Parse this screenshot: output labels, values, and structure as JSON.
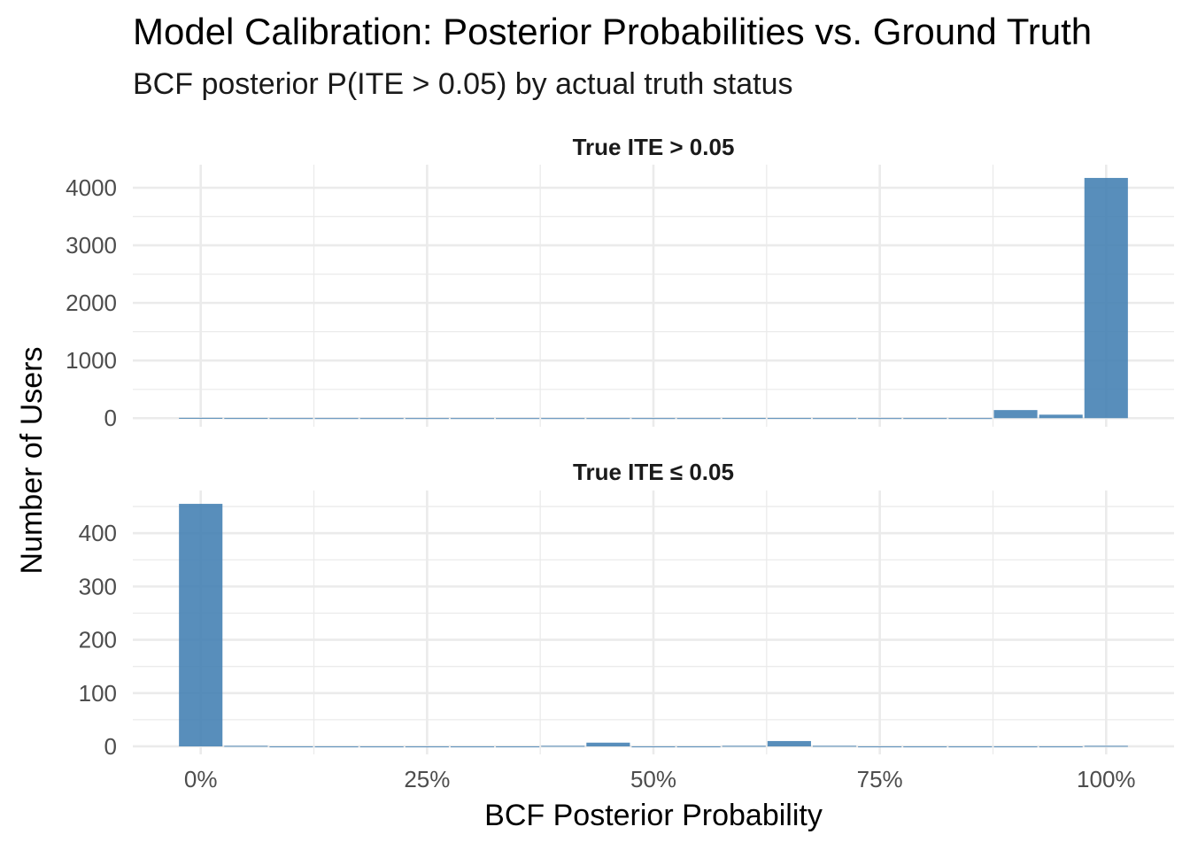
{
  "title": "Model Calibration: Posterior Probabilities vs. Ground Truth",
  "subtitle": "BCF posterior P(ITE > 0.05) by actual truth status",
  "colors": {
    "bar": "#4682b4",
    "grid": "#ebebeb"
  },
  "chart_data": {
    "type": "bar",
    "xlabel": "BCF Posterior Probability",
    "ylabel": "Number of Users",
    "x_ticks": [
      "0%",
      "25%",
      "50%",
      "75%",
      "100%"
    ],
    "xlim": [
      -0.075,
      1.075
    ],
    "bin_width": 0.05,
    "bin_centers": [
      0,
      0.05,
      0.1,
      0.15,
      0.2,
      0.25,
      0.3,
      0.35,
      0.4,
      0.45,
      0.5,
      0.55,
      0.6,
      0.65,
      0.7,
      0.75,
      0.8,
      0.85,
      0.9,
      0.95,
      1.0
    ],
    "grid": true,
    "panels": [
      {
        "label": "True ITE > 0.05",
        "ylim": [
          -150,
          4400
        ],
        "y_ticks": [
          0,
          1000,
          2000,
          3000,
          4000
        ],
        "values": [
          5,
          2,
          1,
          1,
          1,
          1,
          1,
          1,
          1,
          1,
          1,
          1,
          2,
          2,
          1,
          1,
          1,
          1,
          140,
          60,
          4170
        ]
      },
      {
        "label": "True ITE ≤ 0.05",
        "ylim": [
          -15,
          480
        ],
        "y_ticks": [
          0,
          100,
          200,
          300,
          400
        ],
        "values": [
          455,
          1,
          0,
          0,
          0,
          0,
          0,
          0,
          1,
          7,
          0,
          0,
          1,
          10,
          1,
          0,
          0,
          0,
          0,
          0,
          1
        ]
      }
    ]
  }
}
